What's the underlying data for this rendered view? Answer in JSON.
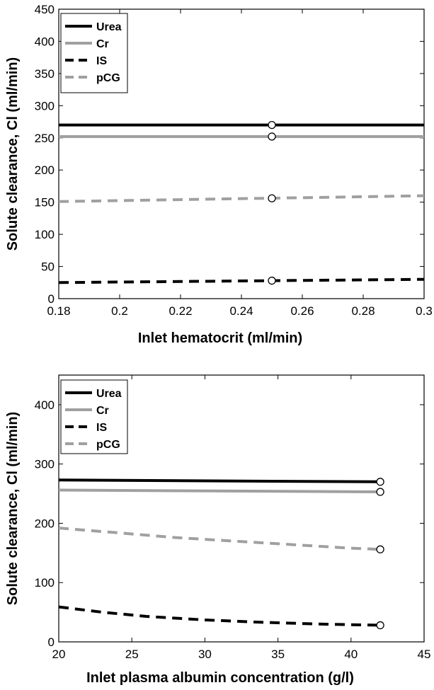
{
  "chart_data": [
    {
      "type": "line",
      "xlabel": "Inlet hematocrit (ml/min)",
      "ylabel": "Solute clearance, Cl (ml/min)",
      "xlim": [
        0.18,
        0.3
      ],
      "ylim": [
        0,
        450
      ],
      "xticks": [
        0.18,
        0.2,
        0.22,
        0.24,
        0.26,
        0.28,
        0.3
      ],
      "yticks": [
        0,
        50,
        100,
        150,
        200,
        250,
        300,
        350,
        400,
        450
      ],
      "xtick_labels": [
        "0.18",
        "0.2",
        "0.22",
        "0.24",
        "0.26",
        "0.28",
        "0.3"
      ],
      "ytick_labels": [
        "0",
        "50",
        "100",
        "150",
        "200",
        "250",
        "300",
        "350",
        "400",
        "450"
      ],
      "legend_position": "top-left",
      "grid": false,
      "series": [
        {
          "name": "Urea",
          "color": "#000000",
          "dash": "solid",
          "x": [
            0.18,
            0.3
          ],
          "y": [
            270,
            270
          ],
          "marker": [
            0.25,
            270
          ]
        },
        {
          "name": "Cr",
          "color": "#a0a0a0",
          "dash": "solid",
          "x": [
            0.18,
            0.3
          ],
          "y": [
            252,
            252
          ],
          "marker": [
            0.25,
            252
          ]
        },
        {
          "name": "IS",
          "color": "#000000",
          "dash": "dashed",
          "x": [
            0.18,
            0.3
          ],
          "y": [
            25,
            30
          ],
          "marker": [
            0.25,
            28
          ]
        },
        {
          "name": "pCG",
          "color": "#a0a0a0",
          "dash": "dashed",
          "x": [
            0.18,
            0.3
          ],
          "y": [
            151,
            160
          ],
          "marker": [
            0.25,
            156
          ]
        }
      ]
    },
    {
      "type": "line",
      "xlabel": "Inlet plasma albumin concentration (g/l)",
      "ylabel": "Solute clearance, Cl (ml/min)",
      "xlim": [
        20,
        45
      ],
      "ylim": [
        0,
        450
      ],
      "xticks": [
        20,
        25,
        30,
        35,
        40,
        45
      ],
      "yticks": [
        0,
        100,
        200,
        300,
        400
      ],
      "xtick_labels": [
        "20",
        "25",
        "30",
        "35",
        "40",
        "45"
      ],
      "ytick_labels": [
        "0",
        "100",
        "200",
        "300",
        "400"
      ],
      "legend_position": "top-left",
      "grid": false,
      "series": [
        {
          "name": "Urea",
          "color": "#000000",
          "dash": "solid",
          "x": [
            20,
            42
          ],
          "y": [
            273,
            270
          ],
          "marker": [
            42,
            270
          ]
        },
        {
          "name": "Cr",
          "color": "#a0a0a0",
          "dash": "solid",
          "x": [
            20,
            42
          ],
          "y": [
            256,
            253
          ],
          "marker": [
            42,
            253
          ]
        },
        {
          "name": "IS",
          "color": "#000000",
          "dash": "dashed",
          "x": [
            20,
            23,
            26,
            30,
            34,
            38,
            42
          ],
          "y": [
            59,
            50,
            43,
            37,
            33,
            30,
            28
          ],
          "marker": [
            42,
            28
          ]
        },
        {
          "name": "pCG",
          "color": "#a0a0a0",
          "dash": "dashed",
          "x": [
            20,
            24,
            28,
            32,
            36,
            40,
            42
          ],
          "y": [
            192,
            184,
            176,
            170,
            164,
            158,
            156
          ],
          "marker": [
            42,
            156
          ]
        }
      ]
    }
  ]
}
